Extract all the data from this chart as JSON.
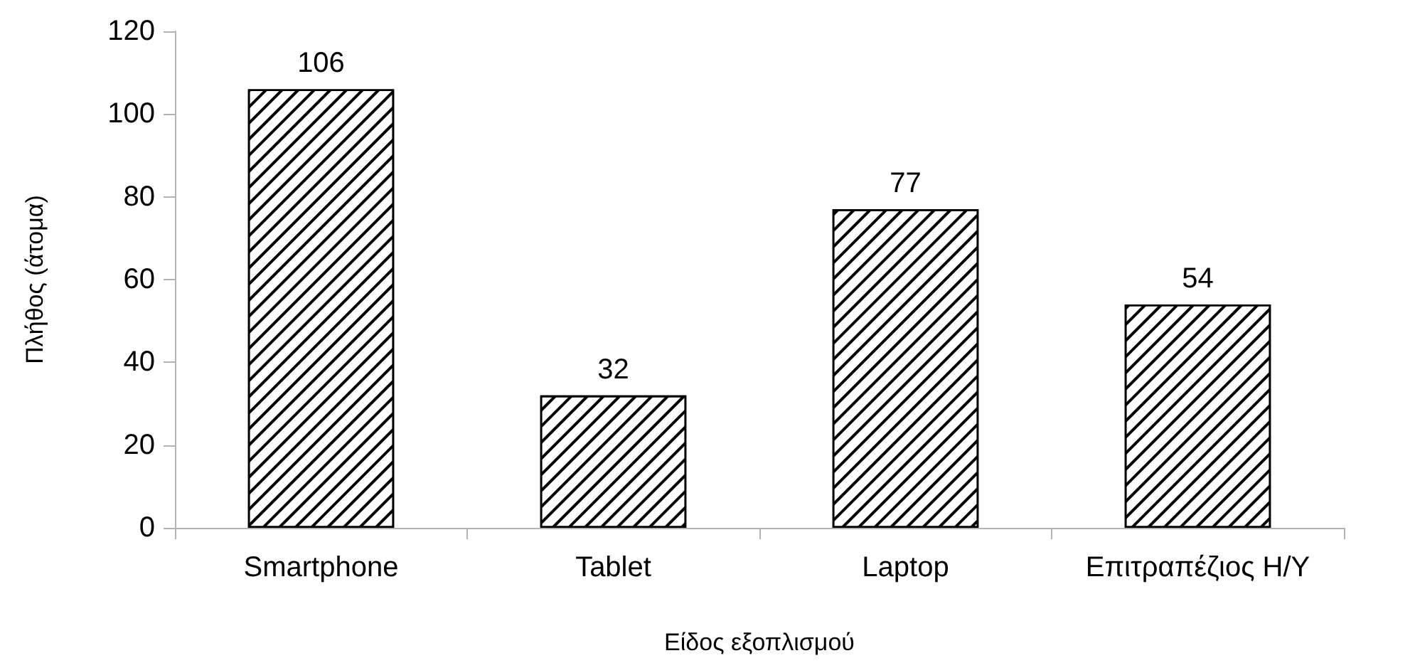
{
  "chart_data": {
    "type": "bar",
    "xlabel": "Είδος εξοπλισμού",
    "ylabel": "Πλήθος (άτομα)",
    "categories": [
      "Smartphone",
      "Tablet",
      "Laptop",
      "Επιτραπέζιος Η/Υ"
    ],
    "values": [
      106,
      32,
      77,
      54
    ],
    "color": "#ffffff",
    "ylim": [
      0,
      120
    ],
    "yticks": [
      0,
      20,
      40,
      60,
      80,
      100,
      120
    ],
    "grid": false,
    "data_labels": true
  }
}
